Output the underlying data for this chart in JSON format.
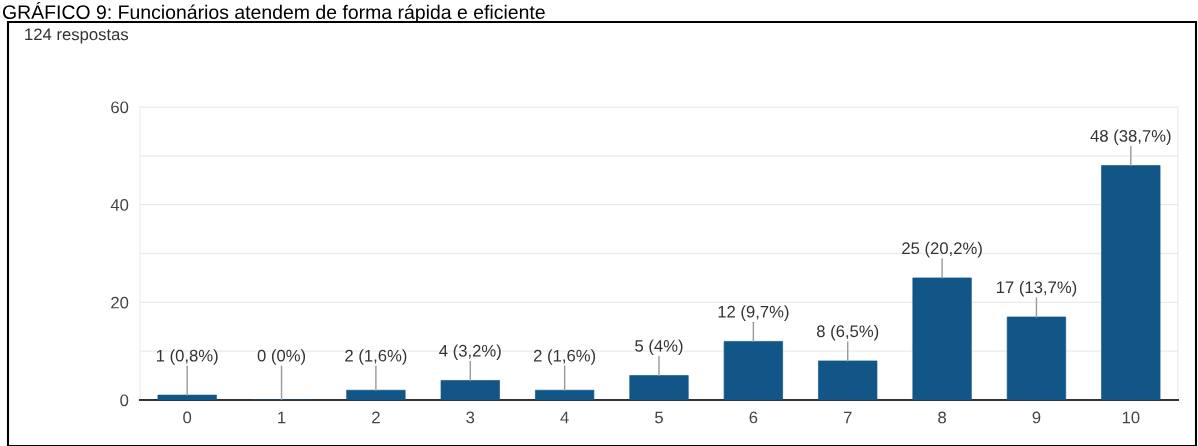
{
  "chart_data": {
    "type": "bar",
    "title": "GRÁFICO 9: Funcionários atendem de forma rápida e eficiente",
    "subtitle": "124 respostas",
    "categories": [
      "0",
      "1",
      "2",
      "3",
      "4",
      "5",
      "6",
      "7",
      "8",
      "9",
      "10"
    ],
    "values": [
      1,
      0,
      2,
      4,
      2,
      5,
      12,
      8,
      25,
      17,
      48
    ],
    "value_labels": [
      "1 (0,8%)",
      "0 (0%)",
      "2 (1,6%)",
      "4 (3,2%)",
      "2 (1,6%)",
      "5 (4%)",
      "12 (9,7%)",
      "8 (6,5%)",
      "25 (20,2%)",
      "17 (13,7%)",
      "48 (38,7%)"
    ],
    "color": "#125687",
    "ylim": [
      0,
      60
    ],
    "yticks": [
      0,
      {
        "value": 10,
        "label": null
      },
      20,
      {
        "value": 30,
        "label": null
      },
      40,
      {
        "value": 50,
        "label": null
      },
      60
    ],
    "grid": "y"
  }
}
